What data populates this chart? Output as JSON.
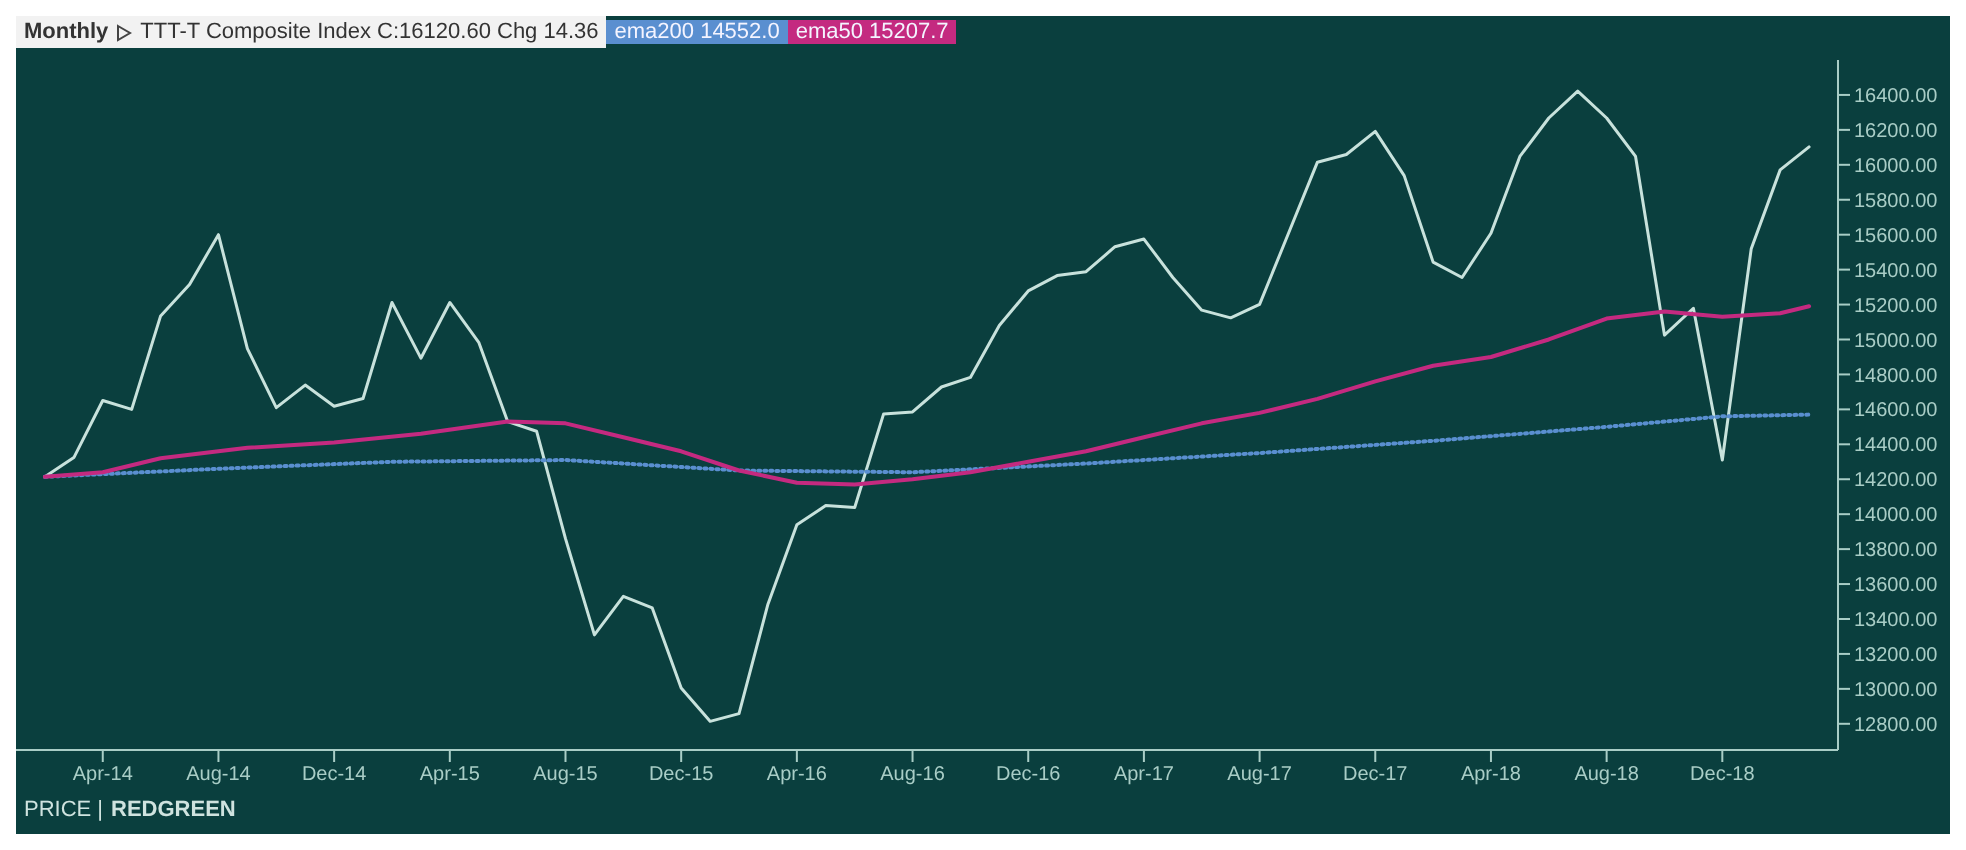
{
  "chart_data": {
    "type": "line",
    "title": "Monthly",
    "subtitle": "TTT-T Composite Index C:16120.60 Chg 14.36",
    "annotations": [
      "PRICE |",
      "REDGREEN"
    ],
    "x": [
      "2014-02",
      "2014-03",
      "2014-04",
      "2014-05",
      "2014-06",
      "2014-07",
      "2014-08",
      "2014-09",
      "2014-10",
      "2014-11",
      "2014-12",
      "2015-01",
      "2015-02",
      "2015-03",
      "2015-04",
      "2015-05",
      "2015-06",
      "2015-07",
      "2015-08",
      "2015-09",
      "2015-10",
      "2015-11",
      "2015-12",
      "2016-01",
      "2016-02",
      "2016-03",
      "2016-04",
      "2016-05",
      "2016-06",
      "2016-07",
      "2016-08",
      "2016-09",
      "2016-10",
      "2016-11",
      "2016-12",
      "2017-01",
      "2017-02",
      "2017-03",
      "2017-04",
      "2017-05",
      "2017-06",
      "2017-07",
      "2017-08",
      "2017-09",
      "2017-10",
      "2017-11",
      "2017-12",
      "2018-01",
      "2018-02",
      "2018-03",
      "2018-04",
      "2018-05",
      "2018-06",
      "2018-07",
      "2018-08",
      "2018-09",
      "2018-10",
      "2018-11",
      "2018-12",
      "2019-01",
      "2019-02",
      "2019-03"
    ],
    "series": [
      {
        "color": "#c8e2dc",
        "values": [
          14214,
          14324,
          14651,
          14600,
          15135,
          15315,
          15600,
          14948,
          14610,
          14739,
          14618,
          14662,
          15212,
          14893,
          15212,
          14984,
          14530,
          14475,
          13860,
          13309,
          13530,
          13463,
          13005,
          12814,
          12858,
          13485,
          13940,
          14049,
          14038,
          14574,
          14585,
          14728,
          14783,
          15080,
          15278,
          15366,
          15388,
          15531,
          15575,
          15355,
          15168,
          15124,
          15201,
          15608,
          16015,
          16059,
          16191,
          15938,
          15443,
          15355,
          15608,
          16048,
          16268,
          16422,
          16268,
          16048,
          15025,
          15179,
          14310,
          15520,
          15971,
          16103
        ]
      },
      {
        "name": "ema200 14552.0",
        "color": "#5a8fd0",
        "line_style": "dotted",
        "x": [
          "2014-02",
          "2014-08",
          "2015-02",
          "2015-08",
          "2016-02",
          "2016-08",
          "2017-02",
          "2017-08",
          "2018-02",
          "2018-08",
          "2018-12",
          "2019-03"
        ],
        "values": [
          14214,
          14260,
          14300,
          14310,
          14250,
          14240,
          14290,
          14350,
          14420,
          14500,
          14560,
          14570
        ]
      },
      {
        "name": "ema50 15207.7",
        "color": "#c42a80",
        "line_style": "solid",
        "x": [
          "2014-02",
          "2014-04",
          "2014-06",
          "2014-09",
          "2014-12",
          "2015-03",
          "2015-06",
          "2015-08",
          "2015-10",
          "2015-12",
          "2016-02",
          "2016-04",
          "2016-06",
          "2016-08",
          "2016-10",
          "2016-12",
          "2017-02",
          "2017-04",
          "2017-06",
          "2017-08",
          "2017-10",
          "2017-12",
          "2018-02",
          "2018-04",
          "2018-06",
          "2018-08",
          "2018-10",
          "2018-12",
          "2019-02",
          "2019-03"
        ],
        "values": [
          14214,
          14240,
          14320,
          14380,
          14410,
          14460,
          14530,
          14520,
          14440,
          14360,
          14250,
          14180,
          14170,
          14200,
          14240,
          14300,
          14360,
          14440,
          14520,
          14580,
          14660,
          14760,
          14850,
          14900,
          15000,
          15120,
          15160,
          15130,
          15150,
          15190
        ]
      }
    ],
    "xlim": [
      "2014-01",
      "2019-04"
    ],
    "xticks": [
      {
        "value": "2014-04",
        "label": "Apr-14"
      },
      {
        "value": "2014-08",
        "label": "Aug-14"
      },
      {
        "value": "2014-12",
        "label": "Dec-14"
      },
      {
        "value": "2015-04",
        "label": "Apr-15"
      },
      {
        "value": "2015-08",
        "label": "Aug-15"
      },
      {
        "value": "2015-12",
        "label": "Dec-15"
      },
      {
        "value": "2016-04",
        "label": "Apr-16"
      },
      {
        "value": "2016-08",
        "label": "Aug-16"
      },
      {
        "value": "2016-12",
        "label": "Dec-16"
      },
      {
        "value": "2017-04",
        "label": "Apr-17"
      },
      {
        "value": "2017-08",
        "label": "Aug-17"
      },
      {
        "value": "2017-12",
        "label": "Dec-17"
      },
      {
        "value": "2018-04",
        "label": "Apr-18"
      },
      {
        "value": "2018-08",
        "label": "Aug-18"
      },
      {
        "value": "2018-12",
        "label": "Dec-18"
      }
    ],
    "ylim": [
      12650,
      16600
    ],
    "yticks": [
      {
        "value": 12800,
        "label": "12800.00"
      },
      {
        "value": 13000,
        "label": "13000.00"
      },
      {
        "value": 13200,
        "label": "13200.00"
      },
      {
        "value": 13400,
        "label": "13400.00"
      },
      {
        "value": 13600,
        "label": "13600.00"
      },
      {
        "value": 13800,
        "label": "13800.00"
      },
      {
        "value": 14000,
        "label": "14000.00"
      },
      {
        "value": 14200,
        "label": "14200.00"
      },
      {
        "value": 14400,
        "label": "14400.00"
      },
      {
        "value": 14600,
        "label": "14600.00"
      },
      {
        "value": 14800,
        "label": "14800.00"
      },
      {
        "value": 15000,
        "label": "15000.00"
      },
      {
        "value": 15200,
        "label": "15200.00"
      },
      {
        "value": 15400,
        "label": "15400.00"
      },
      {
        "value": 15600,
        "label": "15600.00"
      },
      {
        "value": 15800,
        "label": "15800.00"
      },
      {
        "value": 16000,
        "label": "16000.00"
      },
      {
        "value": 16200,
        "label": "16200.00"
      },
      {
        "value": 16400,
        "label": "16400.00"
      }
    ],
    "legend": "top left",
    "grid": false,
    "marker": "none"
  }
}
